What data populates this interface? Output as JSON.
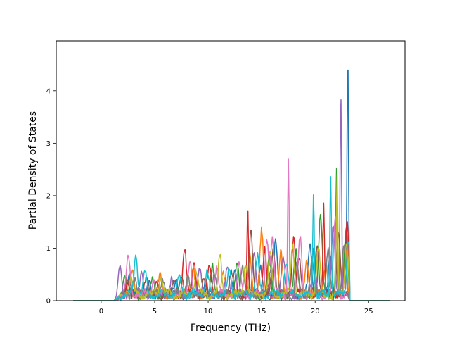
{
  "chart_data": {
    "type": "line",
    "title": "",
    "xlabel": "Frequency (THz)",
    "ylabel": "Partial Density of States",
    "xlim": [
      -4.2,
      28.4
    ],
    "ylim": [
      0,
      4.95
    ],
    "xticks": [
      0,
      5,
      10,
      15,
      20,
      25
    ],
    "yticks": [
      0,
      1,
      2,
      3,
      4
    ],
    "xtick_labels": [
      "0",
      "5",
      "10",
      "15",
      "20",
      "25"
    ],
    "ytick_labels": [
      "0",
      "1",
      "2",
      "3",
      "4"
    ],
    "grid": false,
    "legend": "none",
    "data_range": [
      -2.6,
      27.0
    ],
    "series": [
      {
        "color": "#1f77b4",
        "peaks": [
          [
            2.6,
            0.35
          ],
          [
            4.5,
            0.28
          ],
          [
            7.0,
            0.3
          ],
          [
            9.8,
            0.32
          ],
          [
            12.5,
            0.45
          ],
          [
            14.9,
            0.5
          ],
          [
            16.3,
            1.08
          ],
          [
            19.5,
            0.9
          ],
          [
            21.4,
            0.8
          ],
          [
            23.05,
            4.7
          ]
        ]
      },
      {
        "color": "#ff7f0e",
        "peaks": [
          [
            2.9,
            0.42
          ],
          [
            5.5,
            0.35
          ],
          [
            8.6,
            0.55
          ],
          [
            11.4,
            0.5
          ],
          [
            13.9,
            0.8
          ],
          [
            15.0,
            1.2
          ],
          [
            16.8,
            0.9
          ],
          [
            19.2,
            0.7
          ],
          [
            21.0,
            0.6
          ],
          [
            22.8,
            0.9
          ]
        ]
      },
      {
        "color": "#2ca02c",
        "peaks": [
          [
            2.2,
            0.3
          ],
          [
            4.8,
            0.3
          ],
          [
            7.5,
            0.4
          ],
          [
            10.4,
            0.6
          ],
          [
            12.7,
            0.65
          ],
          [
            15.7,
            0.7
          ],
          [
            18.2,
            0.8
          ],
          [
            20.5,
            1.5
          ],
          [
            22.0,
            2.45
          ],
          [
            22.9,
            1.2
          ]
        ]
      },
      {
        "color": "#d62728",
        "peaks": [
          [
            2.5,
            0.25
          ],
          [
            5.2,
            0.3
          ],
          [
            7.8,
            0.82
          ],
          [
            8.7,
            0.6
          ],
          [
            10.1,
            0.55
          ],
          [
            13.7,
            1.7
          ],
          [
            15.3,
            0.9
          ],
          [
            18.0,
            1.15
          ],
          [
            20.8,
            1.65
          ],
          [
            23.0,
            1.35
          ]
        ]
      },
      {
        "color": "#9467bd",
        "peaks": [
          [
            1.75,
            0.6
          ],
          [
            3.8,
            0.45
          ],
          [
            6.6,
            0.35
          ],
          [
            9.2,
            0.45
          ],
          [
            11.8,
            0.55
          ],
          [
            14.3,
            0.85
          ],
          [
            17.0,
            0.7
          ],
          [
            19.9,
            0.9
          ],
          [
            21.7,
            1.3
          ],
          [
            22.4,
            3.95
          ]
        ]
      },
      {
        "color": "#8c564b",
        "peaks": [
          [
            2.4,
            0.28
          ],
          [
            4.2,
            0.3
          ],
          [
            6.9,
            0.28
          ],
          [
            9.6,
            0.35
          ],
          [
            12.2,
            0.4
          ],
          [
            14.0,
            1.17
          ],
          [
            16.1,
            0.8
          ],
          [
            18.5,
            0.75
          ],
          [
            20.2,
            0.9
          ],
          [
            22.2,
            1.2
          ]
        ]
      },
      {
        "color": "#e377c2",
        "peaks": [
          [
            2.55,
            0.73
          ],
          [
            4.9,
            0.3
          ],
          [
            8.3,
            0.7
          ],
          [
            10.8,
            0.5
          ],
          [
            12.9,
            0.55
          ],
          [
            15.5,
            1.08
          ],
          [
            16.0,
            1.05
          ],
          [
            17.5,
            2.6
          ],
          [
            18.6,
            1.12
          ],
          [
            21.9,
            1.5
          ]
        ]
      },
      {
        "color": "#7f7f7f",
        "peaks": [
          [
            3.1,
            0.28
          ],
          [
            5.8,
            0.3
          ],
          [
            8.1,
            0.35
          ],
          [
            10.6,
            0.4
          ],
          [
            13.2,
            0.5
          ],
          [
            15.9,
            0.55
          ],
          [
            18.3,
            0.6
          ],
          [
            19.7,
            0.7
          ],
          [
            21.2,
            0.9
          ],
          [
            22.7,
            1.0
          ]
        ]
      },
      {
        "color": "#bcbd22",
        "peaks": [
          [
            2.8,
            0.3
          ],
          [
            5.6,
            0.35
          ],
          [
            8.9,
            0.45
          ],
          [
            11.1,
            0.7
          ],
          [
            13.5,
            0.6
          ],
          [
            15.8,
            0.75
          ],
          [
            17.9,
            0.95
          ],
          [
            20.3,
            0.85
          ],
          [
            22.05,
            2.2
          ],
          [
            22.95,
            1.07
          ]
        ]
      },
      {
        "color": "#17becf",
        "peaks": [
          [
            3.25,
            0.73
          ],
          [
            4.1,
            0.4
          ],
          [
            7.3,
            0.35
          ],
          [
            9.9,
            0.45
          ],
          [
            12.0,
            0.5
          ],
          [
            14.6,
            0.7
          ],
          [
            17.3,
            0.6
          ],
          [
            19.85,
            1.92
          ],
          [
            21.45,
            2.28
          ],
          [
            23.1,
            1.1
          ]
        ]
      }
    ]
  }
}
